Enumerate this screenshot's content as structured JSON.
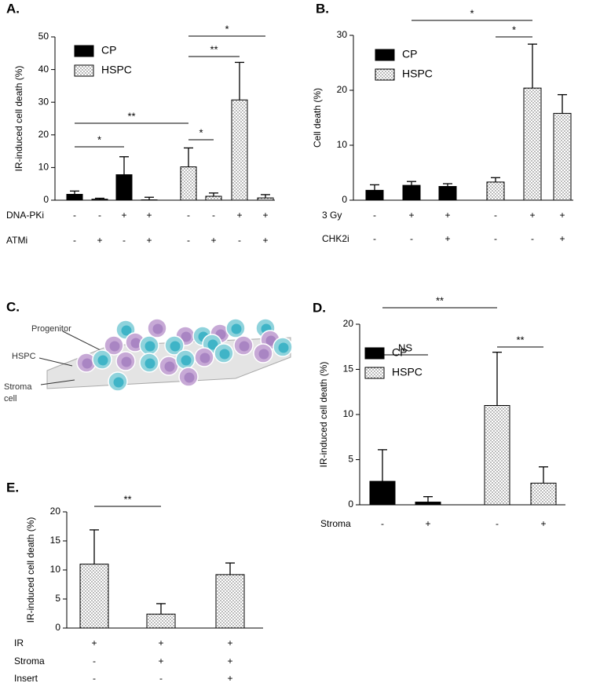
{
  "chart_data": [
    {
      "type": "bar",
      "title": "A.",
      "y_label": "IR-induced cell death (%)",
      "ylim": [
        0,
        50
      ],
      "yticks": [
        0,
        10,
        20,
        30,
        40,
        50
      ],
      "series": [
        {
          "name": "CP",
          "color": "#000000",
          "values": [
            1.8,
            0.3,
            7.8,
            0.1
          ],
          "errors": [
            1.0,
            0.3,
            5.5,
            0.8
          ]
        },
        {
          "name": "HSPC",
          "color": "#ffffff",
          "pattern": "dots",
          "values": [
            10.2,
            1.2,
            30.7,
            0.7
          ],
          "errors": [
            5.8,
            1.0,
            11.5,
            1.0
          ]
        }
      ],
      "conditions": [
        {
          "label": "DNA-PKi",
          "marks": [
            "-",
            "-",
            "+",
            "+",
            "-",
            "-",
            "+",
            "+"
          ]
        },
        {
          "label": "ATMi",
          "marks": [
            "-",
            "+",
            "-",
            "+",
            "-",
            "+",
            "-",
            "+"
          ]
        }
      ],
      "brackets": [
        {
          "from": 0,
          "to": 2,
          "label": "*"
        },
        {
          "from": 0,
          "to": 4,
          "label": "**"
        },
        {
          "from": 4,
          "to": 5,
          "label": "*"
        },
        {
          "from": 4,
          "to": 6,
          "label": "**"
        },
        {
          "from": 4,
          "to": 7,
          "label": "*"
        }
      ]
    },
    {
      "type": "bar",
      "title": "B.",
      "y_label": "Cell death (%)",
      "ylim": [
        0,
        30
      ],
      "yticks": [
        0,
        10,
        20,
        30
      ],
      "series": [
        {
          "name": "CP",
          "color": "#000000",
          "values": [
            1.8,
            2.7,
            2.5
          ],
          "errors": [
            1.0,
            0.7,
            0.5
          ]
        },
        {
          "name": "HSPC",
          "color": "#ffffff",
          "pattern": "dots",
          "values": [
            3.3,
            20.4,
            15.8
          ],
          "errors": [
            0.8,
            8.0,
            3.4
          ]
        }
      ],
      "conditions": [
        {
          "label": "3 Gy",
          "marks": [
            "-",
            "+",
            "+",
            "-",
            "+",
            "+"
          ]
        },
        {
          "label": "CHK2i",
          "marks": [
            "-",
            "-",
            "+",
            "-",
            "-",
            "+"
          ]
        }
      ],
      "brackets": [
        {
          "from": 1,
          "to": 4,
          "label": "*"
        },
        {
          "from": 3,
          "to": 4,
          "label": "*"
        }
      ]
    },
    {
      "type": "bar",
      "title": "D.",
      "y_label": "IR-induced cell death (%)",
      "ylim": [
        0,
        20
      ],
      "yticks": [
        0,
        5,
        10,
        15,
        20
      ],
      "series": [
        {
          "name": "CP",
          "color": "#000000",
          "values": [
            2.6,
            0.3
          ],
          "errors": [
            3.5,
            0.6
          ]
        },
        {
          "name": "HSPC",
          "color": "#ffffff",
          "pattern": "dots",
          "values": [
            11.0,
            2.4
          ],
          "errors": [
            5.9,
            1.8
          ]
        }
      ],
      "conditions": [
        {
          "label": "Stroma",
          "marks": [
            "-",
            "+",
            "-",
            "+"
          ]
        }
      ],
      "brackets": [
        {
          "from": 0,
          "to": 1,
          "label": "NS"
        },
        {
          "from": 0,
          "to": 2,
          "label": "**"
        },
        {
          "from": 2,
          "to": 3,
          "label": "**"
        }
      ]
    },
    {
      "type": "bar",
      "title": "E.",
      "y_label": "IR-induced cell death (%)",
      "ylim": [
        0,
        20
      ],
      "yticks": [
        0,
        5,
        10,
        15,
        20
      ],
      "series": [
        {
          "color": "#ffffff",
          "pattern": "dots",
          "values": [
            11.0,
            2.4,
            9.2
          ],
          "errors": [
            5.9,
            1.8,
            2.0
          ]
        }
      ],
      "conditions": [
        {
          "label": "IR",
          "marks": [
            "+",
            "+",
            "+"
          ]
        },
        {
          "label": "Stroma",
          "marks": [
            "-",
            "+",
            "+"
          ]
        },
        {
          "label": "Insert",
          "marks": [
            "-",
            "-",
            "+"
          ]
        }
      ],
      "brackets": [
        {
          "from": 0,
          "to": 1,
          "label": "**"
        }
      ]
    }
  ],
  "diagram": {
    "title": "C.",
    "labels": [
      "Progenitor",
      "HSPC",
      "Stroma cell"
    ]
  }
}
